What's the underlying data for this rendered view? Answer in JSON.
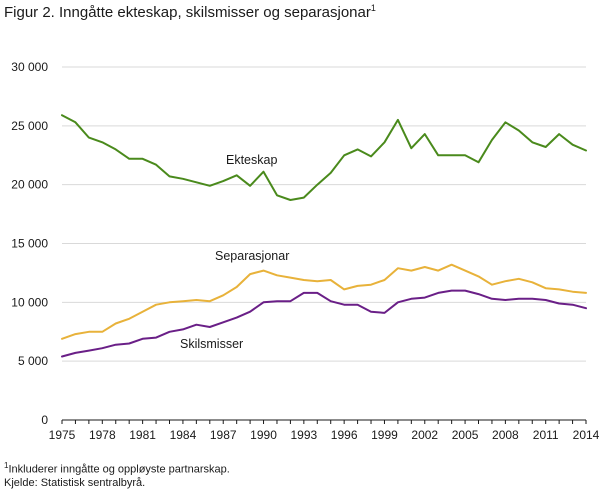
{
  "title": "Figur 2. Inngåtte ekteskap,  skilsmisser og separasjonar",
  "title_footnote_mark": "1",
  "footnotes": [
    {
      "mark": "1",
      "text": "Inkluderer inngåtte og oppløyste partnarskap."
    },
    {
      "mark": "",
      "text": "Kjelde: Statistisk sentralbyrå."
    }
  ],
  "chart_data": {
    "type": "line",
    "title": "Figur 2. Inngåtte ekteskap,  skilsmisser og separasjonar",
    "xlabel": "",
    "ylabel": "",
    "xlim": [
      1975,
      2014
    ],
    "ylim": [
      0,
      30000
    ],
    "grid": true,
    "legend": "none (inline labels)",
    "x_ticks": [
      1975,
      1978,
      1981,
      1984,
      1987,
      1990,
      1993,
      1996,
      1999,
      2002,
      2005,
      2008,
      2011,
      2014
    ],
    "y_ticks": [
      0,
      5000,
      10000,
      15000,
      20000,
      25000,
      30000
    ],
    "y_tick_labels": [
      "0",
      "5 000",
      "10 000",
      "15 000",
      "20 000",
      "25 000",
      "30 000"
    ],
    "x": [
      1975,
      1976,
      1977,
      1978,
      1979,
      1980,
      1981,
      1982,
      1983,
      1984,
      1985,
      1986,
      1987,
      1988,
      1989,
      1990,
      1991,
      1992,
      1993,
      1994,
      1995,
      1996,
      1997,
      1998,
      1999,
      2000,
      2001,
      2002,
      2003,
      2004,
      2005,
      2006,
      2007,
      2008,
      2009,
      2010,
      2011,
      2012,
      2013,
      2014
    ],
    "series": [
      {
        "name": "Ekteskap",
        "color": "#4a8a1c",
        "values": [
          25900,
          25300,
          24000,
          23600,
          23000,
          22200,
          22200,
          21700,
          20700,
          20500,
          20200,
          19900,
          20300,
          20800,
          19900,
          21100,
          19100,
          18700,
          18900,
          20000,
          21000,
          22500,
          23000,
          22400,
          23600,
          25500,
          23100,
          24300,
          22500,
          22500,
          22500,
          21900,
          23800,
          25300,
          24600,
          23600,
          23200,
          24300,
          23400,
          22900
        ]
      },
      {
        "name": "Separasjonar",
        "color": "#e8b23a",
        "values": [
          6900,
          7300,
          7500,
          7500,
          8200,
          8600,
          9200,
          9800,
          10000,
          10100,
          10200,
          10100,
          10600,
          11300,
          12400,
          12700,
          12300,
          12100,
          11900,
          11800,
          11900,
          11100,
          11400,
          11500,
          11900,
          12900,
          12700,
          13000,
          12700,
          13200,
          12700,
          12200,
          11500,
          11800,
          12000,
          11700,
          11200,
          11100,
          10900,
          10800
        ]
      },
      {
        "name": "Skilsmisser",
        "color": "#6a1f87",
        "values": [
          5400,
          5700,
          5900,
          6100,
          6400,
          6500,
          6900,
          7000,
          7500,
          7700,
          8100,
          7900,
          8300,
          8700,
          9200,
          10000,
          10100,
          10100,
          10800,
          10800,
          10100,
          9800,
          9800,
          9200,
          9100,
          10000,
          10300,
          10400,
          10800,
          11000,
          11000,
          10700,
          10300,
          10200,
          10300,
          10300,
          10200,
          9900,
          9800,
          9500
        ]
      }
    ],
    "annotations": [
      "Ekteskap",
      "Separasjonar",
      "Skilsmisser"
    ]
  }
}
